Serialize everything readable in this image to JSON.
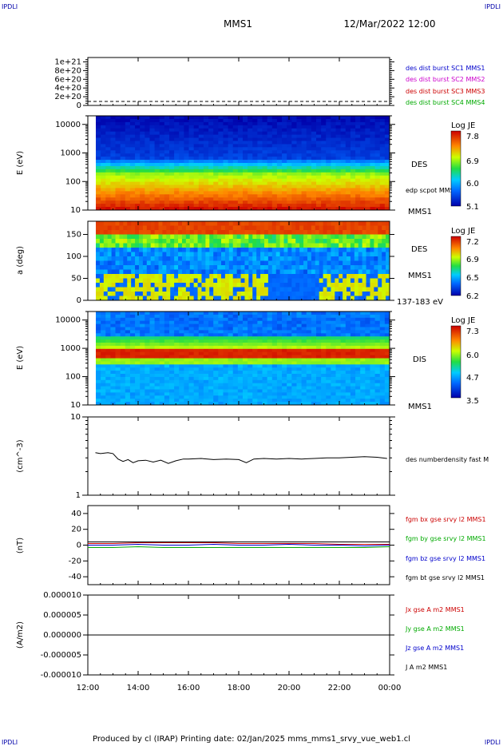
{
  "header": {
    "corner_left": "IPDLI",
    "corner_right": "IPDLI",
    "title": "MMS1",
    "datetime": "12/Mar/2022 12:00"
  },
  "footer": {
    "text": "Produced by cl (IRAP)   Printing date: 02/Jan/2025   mms_mms1_srvy_vue_web1.cl",
    "corner_left": "IPDLI",
    "corner_right": "IPDLI"
  },
  "time_axis": {
    "ticks": [
      "12:00",
      "14:00",
      "16:00",
      "18:00",
      "20:00",
      "22:00",
      "00:00"
    ],
    "range_hours": [
      12,
      24
    ]
  },
  "colors": {
    "blue": "#0000cc",
    "magenta": "#cc00cc",
    "red": "#cc0000",
    "green": "#00aa00",
    "black": "#000000"
  },
  "chart_data": [
    {
      "type": "line",
      "panel": "burst",
      "ylim": [
        0,
        1.1e+21
      ],
      "yticks": [
        "0",
        "2e+20",
        "4e+20",
        "6e+20",
        "8e+20",
        "1e+21"
      ],
      "legend": [
        {
          "label": "des dist burst SC1 MMS1",
          "color": "#0000cc"
        },
        {
          "label": "des dist burst SC2 MMS2",
          "color": "#cc00cc"
        },
        {
          "label": "des dist burst SC3 MMS3",
          "color": "#cc0000"
        },
        {
          "label": "des dist burst SC4 MMS4",
          "color": "#00aa00"
        }
      ],
      "series": [
        {
          "values": [
            0,
            0
          ]
        }
      ]
    },
    {
      "type": "heatmap",
      "panel": "des-energy",
      "ylabel": "E (eV)",
      "yscale": "log",
      "ylim": [
        10,
        20000
      ],
      "yticks": [
        "10",
        "100",
        "1000",
        "10000"
      ],
      "labels": [
        "DES",
        "edp scpot MMS1",
        "MMS1"
      ],
      "colorbar": {
        "title": "Log JE",
        "ticks": [
          "7.8",
          "6.9",
          "6.0",
          "5.1"
        ]
      }
    },
    {
      "type": "heatmap",
      "panel": "des-pitch",
      "ylabel": "a (deg)",
      "ylim": [
        0,
        180
      ],
      "yticks": [
        "0",
        "50",
        "100",
        "150"
      ],
      "labels": [
        "DES",
        "MMS1",
        "137-183 eV"
      ],
      "colorbar": {
        "title": "Log JE",
        "ticks": [
          "7.2",
          "6.9",
          "6.5",
          "6.2"
        ]
      }
    },
    {
      "type": "heatmap",
      "panel": "dis-energy",
      "ylabel": "E (eV)",
      "yscale": "log",
      "ylim": [
        10,
        20000
      ],
      "yticks": [
        "10",
        "100",
        "1000",
        "10000"
      ],
      "labels": [
        "DIS",
        "MMS1"
      ],
      "colorbar": {
        "title": "Log JE",
        "ticks": [
          "7.3",
          "6.0",
          "4.7",
          "3.5"
        ]
      }
    },
    {
      "type": "line",
      "panel": "density",
      "ylabel": "(cm^-3)",
      "yscale": "log",
      "ylim": [
        1,
        10
      ],
      "yticks": [
        "1",
        "10"
      ],
      "series": [
        {
          "name": "des numberdensity fast M",
          "color": "#000000",
          "x": [
            12.3,
            12.5,
            12.8,
            13.0,
            13.2,
            13.4,
            13.6,
            13.8,
            14.0,
            14.3,
            14.6,
            14.9,
            15.2,
            15.5,
            15.8,
            16.0,
            16.5,
            17.0,
            17.5,
            18.0,
            18.3,
            18.6,
            19.0,
            19.5,
            20.0,
            20.5,
            21.0,
            21.5,
            22.0,
            22.5,
            23.0,
            23.5,
            23.9
          ],
          "values": [
            3.5,
            3.4,
            3.5,
            3.4,
            2.9,
            2.7,
            2.85,
            2.6,
            2.75,
            2.8,
            2.65,
            2.8,
            2.55,
            2.75,
            2.9,
            2.9,
            2.95,
            2.85,
            2.9,
            2.85,
            2.6,
            2.9,
            2.95,
            2.9,
            2.95,
            2.9,
            2.95,
            3.0,
            3.0,
            3.05,
            3.1,
            3.05,
            2.95
          ]
        }
      ]
    },
    {
      "type": "line",
      "panel": "fgm",
      "ylabel": "(nT)",
      "ylim": [
        -50,
        50
      ],
      "yticks": [
        "-40",
        "-20",
        "0",
        "20",
        "40"
      ],
      "series": [
        {
          "name": "fgm bx gse srvy l2 MMS1",
          "color": "#cc0000",
          "x": [
            12.0,
            13.0,
            14.0,
            15.0,
            16.0,
            17.0,
            18.0,
            19.0,
            20.0,
            21.0,
            22.0,
            23.0,
            24.0
          ],
          "values": [
            2,
            2,
            3,
            3,
            3,
            3,
            2,
            2,
            2,
            2,
            1,
            1,
            1
          ]
        },
        {
          "name": "fgm by gse srvy l2 MMS1",
          "color": "#00aa00",
          "x": [
            12.0,
            13.0,
            14.0,
            15.0,
            16.0,
            17.0,
            18.0,
            19.0,
            20.0,
            21.0,
            22.0,
            23.0,
            24.0
          ],
          "values": [
            -3,
            -3,
            -2,
            -3,
            -3,
            -3,
            -3,
            -3,
            -3,
            -3,
            -3,
            -3,
            -2
          ]
        },
        {
          "name": "fgm bz gse srvy l2 MMS1",
          "color": "#0000cc",
          "x": [
            12.0,
            13.0,
            14.0,
            15.0,
            16.0,
            17.0,
            18.0,
            19.0,
            20.0,
            21.0,
            22.0,
            23.0,
            24.0
          ],
          "values": [
            0,
            0,
            1,
            0,
            0,
            1,
            0,
            0,
            1,
            0,
            0,
            -1,
            0
          ]
        },
        {
          "name": "fgm bt gse srvy l2 MMS1",
          "color": "#000000",
          "x": [
            12.0,
            13.0,
            14.0,
            15.0,
            16.0,
            17.0,
            18.0,
            19.0,
            20.0,
            21.0,
            22.0,
            23.0,
            24.0
          ],
          "values": [
            4,
            4,
            4,
            4,
            4,
            4,
            4,
            4,
            4,
            4,
            4,
            4,
            4
          ]
        }
      ]
    },
    {
      "type": "line",
      "panel": "current",
      "ylabel": "(A/m2)",
      "ylim": [
        -1e-05,
        1e-05
      ],
      "yticks": [
        "-0.000010",
        "-0.000005",
        "0.000000",
        "0.000005",
        "0.000010"
      ],
      "series": [
        {
          "name": "Jx gse A m2 MMS1",
          "color": "#cc0000",
          "x": [
            12,
            24
          ],
          "values": [
            0,
            0
          ]
        },
        {
          "name": "Jy gse A m2 MMS1",
          "color": "#00aa00",
          "x": [
            12,
            24
          ],
          "values": [
            0,
            0
          ]
        },
        {
          "name": "Jz gse A m2 MMS1",
          "color": "#0000cc",
          "x": [
            12,
            24
          ],
          "values": [
            0,
            0
          ]
        },
        {
          "name": "J A m2 MMS1",
          "color": "#000000",
          "x": [
            12,
            24
          ],
          "values": [
            0,
            0
          ]
        }
      ]
    }
  ]
}
